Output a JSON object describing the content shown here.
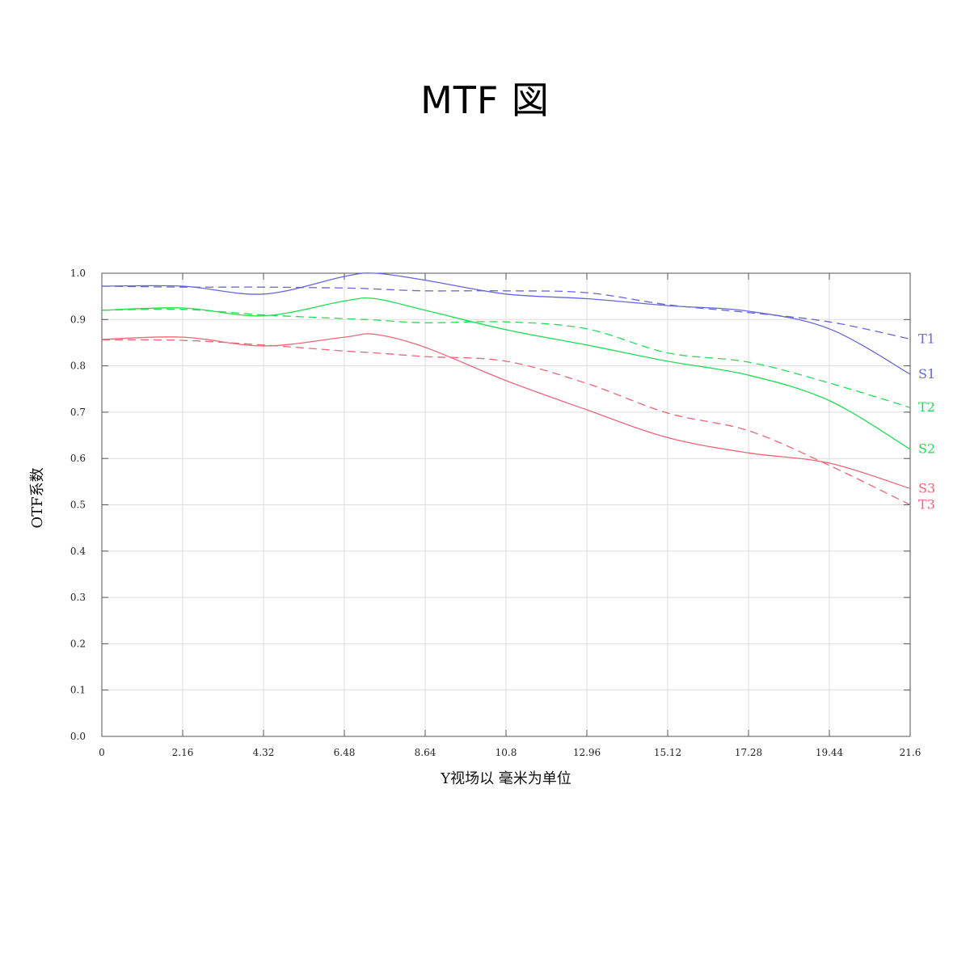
{
  "title": "MTF 図",
  "chart_data": {
    "type": "line",
    "title": "MTF 図",
    "xlabel": "Y视场以 毫米为单位",
    "ylabel": "OTF系数",
    "xlim": [
      0,
      21.6
    ],
    "ylim": [
      0,
      1.0
    ],
    "grid": true,
    "legend": "inline-right",
    "x_ticks": [
      "0",
      "2.16",
      "4.32",
      "6.48",
      "8.64",
      "10.8",
      "12.96",
      "15.12",
      "17.28",
      "19.44",
      "21.6"
    ],
    "y_ticks": [
      "0.0",
      "0.1",
      "0.2",
      "0.3",
      "0.4",
      "0.5",
      "0.6",
      "0.7",
      "0.8",
      "0.9",
      "1.0"
    ],
    "x": [
      0,
      2.16,
      4.32,
      6.48,
      7.3,
      8.64,
      10.8,
      12.96,
      15.12,
      17.28,
      19.44,
      21.6
    ],
    "series": [
      {
        "name": "T1",
        "color": "#6666dd",
        "style": "dashed",
        "values": [
          0.972,
          0.97,
          0.97,
          0.968,
          0.966,
          0.962,
          0.962,
          0.958,
          0.932,
          0.915,
          0.895,
          0.858
        ]
      },
      {
        "name": "S1",
        "color": "#6666dd",
        "style": "solid",
        "values": [
          0.972,
          0.972,
          0.955,
          0.993,
          1.0,
          0.985,
          0.955,
          0.945,
          0.93,
          0.918,
          0.88,
          0.782
        ]
      },
      {
        "name": "T2",
        "color": "#22dd55",
        "style": "dashed",
        "values": [
          0.92,
          0.922,
          0.91,
          0.902,
          0.899,
          0.893,
          0.895,
          0.88,
          0.828,
          0.808,
          0.763,
          0.71
        ]
      },
      {
        "name": "S2",
        "color": "#22dd55",
        "style": "solid",
        "values": [
          0.92,
          0.925,
          0.908,
          0.94,
          0.945,
          0.92,
          0.878,
          0.845,
          0.81,
          0.78,
          0.725,
          0.62
        ]
      },
      {
        "name": "S3",
        "color": "#ee6677",
        "style": "solid",
        "values": [
          0.857,
          0.862,
          0.843,
          0.862,
          0.868,
          0.84,
          0.768,
          0.705,
          0.645,
          0.612,
          0.59,
          0.535
        ]
      },
      {
        "name": "T3",
        "color": "#ee6677",
        "style": "dashed",
        "values": [
          0.856,
          0.855,
          0.845,
          0.832,
          0.828,
          0.82,
          0.81,
          0.762,
          0.698,
          0.66,
          0.585,
          0.5
        ]
      }
    ]
  }
}
